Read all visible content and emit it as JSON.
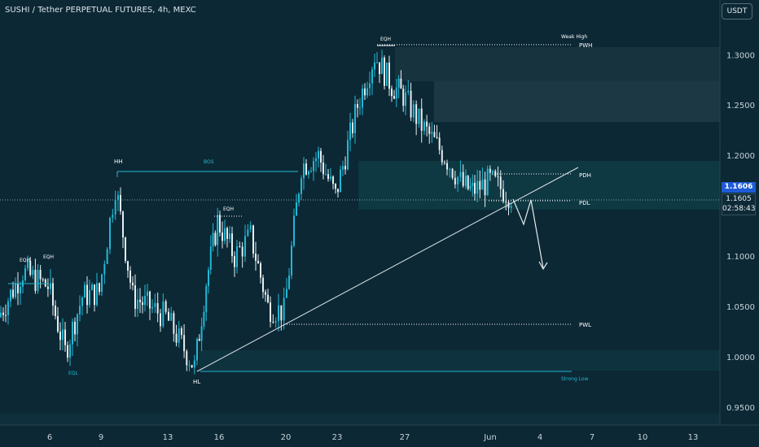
{
  "header": {
    "title": "SUSHI / Tether PERPETUAL FUTURES, 4h, MEXC",
    "currency": "USDT"
  },
  "price_axis": {
    "last_price": "1.1606",
    "current_price": "1.1605",
    "countdown": "02:58:43"
  },
  "annotations": {
    "eqh_1": "EQH",
    "eqh_2": "EQH",
    "eql": "EQL",
    "hh": "HH",
    "bos": "BOS",
    "eqh_3": "EQH",
    "hl": "HL",
    "eqh_4": "EQH",
    "weak_high": "Weak High",
    "pwh": "PWH",
    "pdh": "PDH",
    "pdl": "PDL",
    "pwl": "PWL",
    "strong_low": "Strong Low"
  },
  "colors": {
    "background": "#0c2835",
    "candle": "#22b8d4",
    "accent": "#1e5bd6",
    "text": "#c8d3da"
  },
  "chart_data": {
    "type": "candlestick",
    "symbol": "SUSHI / Tether PERPETUAL FUTURES",
    "interval": "4h",
    "exchange": "MEXC",
    "ylim": [
      0.935,
      1.345
    ],
    "yticks": [
      "1.3000",
      "1.2500",
      "1.2000",
      "1.1000",
      "1.0500",
      "1.0000",
      "0.9500"
    ],
    "xticks": [
      "6",
      "9",
      "13",
      "16",
      "20",
      "23",
      "27",
      "Jun",
      "4",
      "7",
      "10",
      "13"
    ],
    "price_points": [
      {
        "date": "4",
        "price": 1.04
      },
      {
        "date": "5",
        "price": 1.085
      },
      {
        "date": "6",
        "price": 1.07
      },
      {
        "date": "7",
        "price": 1.005
      },
      {
        "date": "8",
        "price": 1.06
      },
      {
        "date": "9",
        "price": 1.065
      },
      {
        "date": "10",
        "price": 1.17
      },
      {
        "date": "11",
        "price": 1.06
      },
      {
        "date": "12",
        "price": 1.05
      },
      {
        "date": "13",
        "price": 1.04
      },
      {
        "date": "14",
        "price": 0.99
      },
      {
        "date": "15",
        "price": 1.075
      },
      {
        "date": "16",
        "price": 1.135
      },
      {
        "date": "17",
        "price": 1.1
      },
      {
        "date": "18",
        "price": 1.12
      },
      {
        "date": "19",
        "price": 1.05
      },
      {
        "date": "20",
        "price": 1.045
      },
      {
        "date": "21",
        "price": 1.19
      },
      {
        "date": "22",
        "price": 1.2
      },
      {
        "date": "23",
        "price": 1.16
      },
      {
        "date": "24",
        "price": 1.25
      },
      {
        "date": "25",
        "price": 1.3
      },
      {
        "date": "26",
        "price": 1.27
      },
      {
        "date": "27",
        "price": 1.26
      },
      {
        "date": "28",
        "price": 1.23
      },
      {
        "date": "29",
        "price": 1.2
      },
      {
        "date": "30",
        "price": 1.17
      },
      {
        "date": "31",
        "price": 1.165
      },
      {
        "date": "Jun 1",
        "price": 1.175
      },
      {
        "date": "Jun 2",
        "price": 1.1605
      }
    ],
    "levels": [
      {
        "label": "PWH",
        "price": 1.315
      },
      {
        "label": "PDH",
        "price": 1.185
      },
      {
        "label": "PDL",
        "price": 1.158
      },
      {
        "label": "PWL",
        "price": 1.035
      },
      {
        "label": "Strong Low",
        "price": 0.99
      }
    ],
    "zones": [
      {
        "from": 1.24,
        "to": 1.312
      },
      {
        "from": 1.155,
        "to": 1.2
      },
      {
        "from": 0.99,
        "to": 1.01
      }
    ],
    "trendline": {
      "from": {
        "date": "14",
        "price": 0.99
      },
      "to": {
        "date": "Jun 5",
        "price": 1.19
      }
    },
    "projection": [
      {
        "date": "Jun 2",
        "price": 1.163
      },
      {
        "date": "Jun 3",
        "price": 1.135
      },
      {
        "date": "Jun 3",
        "price": 1.165
      },
      {
        "date": "Jun 4",
        "price": 1.095
      }
    ],
    "grid": false
  }
}
